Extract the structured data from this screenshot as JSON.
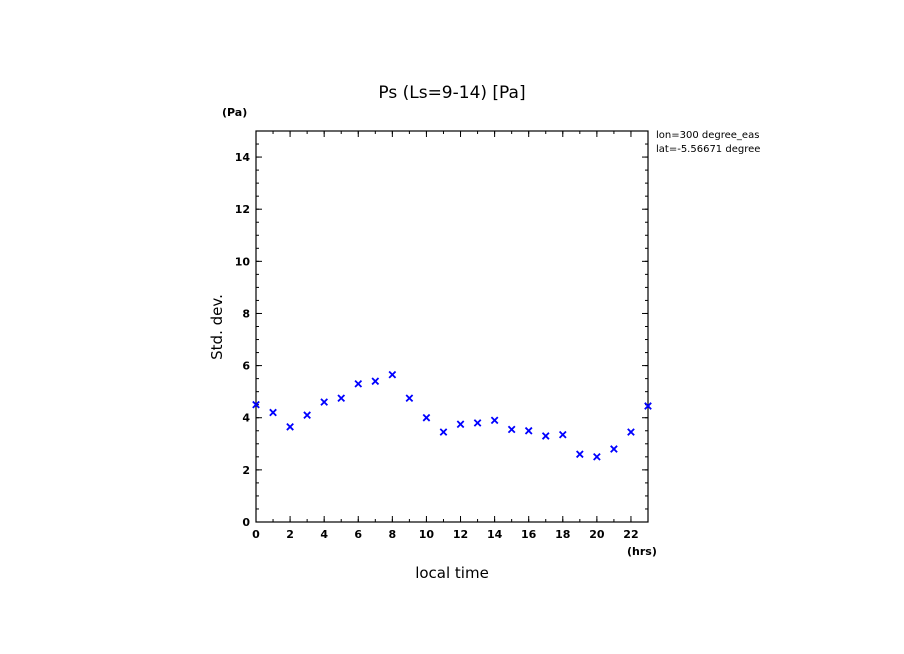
{
  "chart_data": {
    "type": "scatter",
    "title": "Ps (Ls=9-14) [Pa]",
    "xlabel": "local time",
    "ylabel": "Std. dev.",
    "x_unit": "(hrs)",
    "y_unit": "(Pa)",
    "xlim": [
      0,
      23
    ],
    "ylim": [
      0,
      15
    ],
    "x_ticks": [
      0,
      2,
      4,
      6,
      8,
      10,
      12,
      14,
      16,
      18,
      20,
      22
    ],
    "y_ticks": [
      0,
      2,
      4,
      6,
      8,
      10,
      12,
      14
    ],
    "x_minor_step": 1,
    "y_minor_step": 0.5,
    "marker": "x",
    "color": "#0000ff",
    "annotations": [
      "lon=300 degree_eas",
      "lat=-5.56671 degree"
    ],
    "x": [
      0,
      1,
      2,
      3,
      4,
      5,
      6,
      7,
      8,
      9,
      10,
      11,
      12,
      13,
      14,
      15,
      16,
      17,
      18,
      19,
      20,
      21,
      22,
      23
    ],
    "y": [
      4.5,
      4.2,
      3.65,
      4.1,
      4.6,
      4.75,
      5.3,
      5.4,
      5.65,
      4.75,
      4.0,
      3.45,
      3.75,
      3.8,
      3.9,
      3.55,
      3.5,
      3.3,
      3.35,
      2.6,
      2.5,
      2.8,
      3.45,
      4.45
    ]
  }
}
